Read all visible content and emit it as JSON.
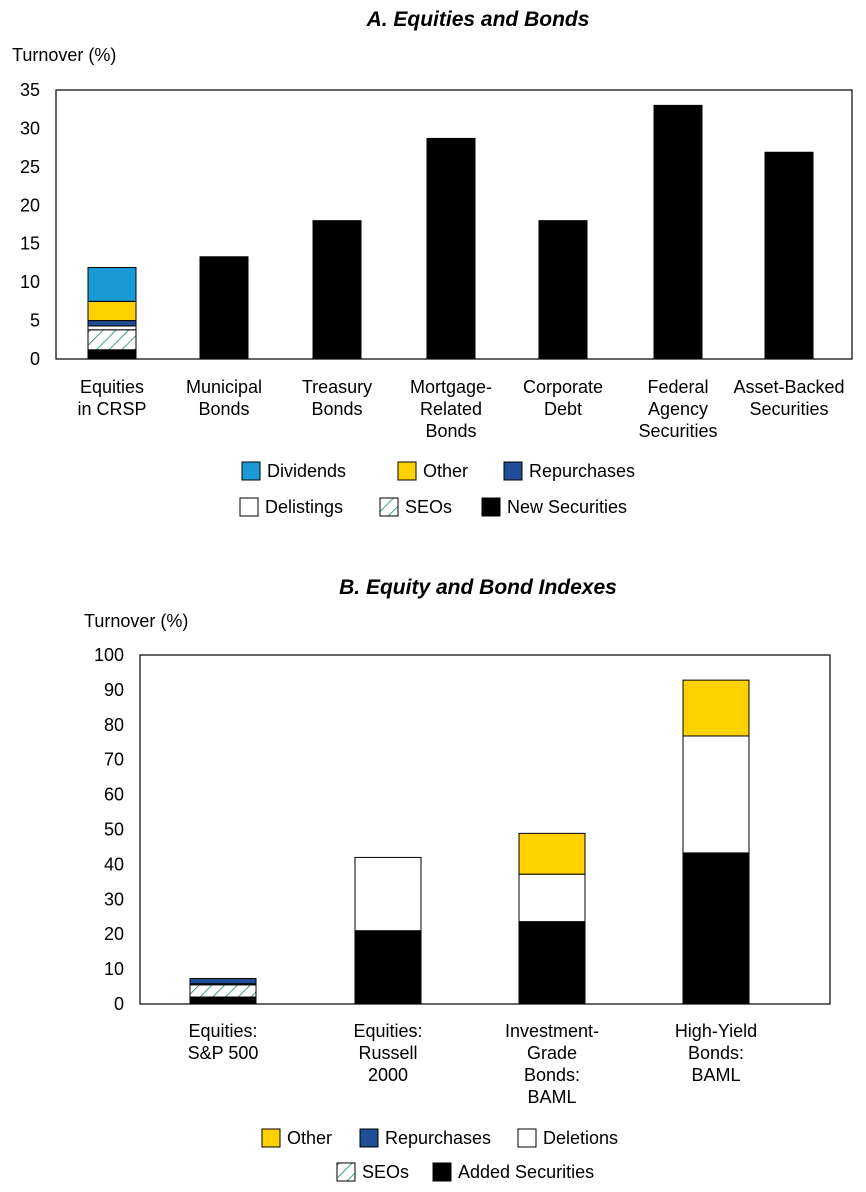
{
  "colors": {
    "dividends": "#1a9bd6",
    "other": "#ffd100",
    "repurchases": "#1f4e96",
    "delistings": "#ffffff",
    "seos_hatch": "#1e8a5a",
    "new_securities": "#000000"
  },
  "chart_data": [
    {
      "type": "bar",
      "stacked": true,
      "title": "A. Equities and Bonds",
      "ylabel": "Turnover (%)",
      "ylim": [
        0,
        35
      ],
      "yticks": [
        0,
        5,
        10,
        15,
        20,
        25,
        30,
        35
      ],
      "grid": false,
      "categories": [
        [
          "Equities",
          "in CRSP"
        ],
        [
          "Municipal",
          "Bonds"
        ],
        [
          "Treasury",
          "Bonds"
        ],
        [
          "Mortgage-",
          "Related",
          "Bonds"
        ],
        [
          "Corporate",
          "Debt"
        ],
        [
          "Federal",
          "Agency",
          "Securities"
        ],
        [
          "Asset-Backed",
          "Securities"
        ]
      ],
      "series": [
        {
          "name": "New Securities",
          "key": "new_securities",
          "values": [
            1.2,
            13.3,
            18.0,
            28.7,
            18.0,
            33.0,
            26.9
          ]
        },
        {
          "name": "SEOs",
          "key": "seos",
          "values": [
            2.6,
            0,
            0,
            0,
            0,
            0,
            0
          ]
        },
        {
          "name": "Delistings",
          "key": "delistings",
          "values": [
            0.5,
            0,
            0,
            0,
            0,
            0,
            0
          ]
        },
        {
          "name": "Repurchases",
          "key": "repurchases",
          "values": [
            0.7,
            0,
            0,
            0,
            0,
            0,
            0
          ]
        },
        {
          "name": "Other",
          "key": "other",
          "values": [
            2.5,
            0,
            0,
            0,
            0,
            0,
            0
          ]
        },
        {
          "name": "Dividends",
          "key": "dividends",
          "values": [
            4.4,
            0,
            0,
            0,
            0,
            0,
            0
          ]
        }
      ],
      "legend_rows": [
        [
          "Dividends",
          "Other",
          "Repurchases"
        ],
        [
          "Delistings",
          "SEOs",
          "New Securities"
        ]
      ],
      "legend_keys": [
        [
          "dividends",
          "other",
          "repurchases"
        ],
        [
          "delistings",
          "seos",
          "new_securities"
        ]
      ],
      "legend_position": "bottom"
    },
    {
      "type": "bar",
      "stacked": true,
      "title": "B. Equity and Bond Indexes",
      "ylabel": "Turnover (%)",
      "ylim": [
        0,
        100
      ],
      "yticks": [
        0,
        10,
        20,
        30,
        40,
        50,
        60,
        70,
        80,
        90,
        100
      ],
      "grid": false,
      "categories": [
        [
          "Equities:",
          "S&P 500"
        ],
        [
          "Equities:",
          "Russell",
          "2000"
        ],
        [
          "Investment-",
          "Grade",
          "Bonds:",
          "BAML"
        ],
        [
          "High-Yield",
          "Bonds:",
          "BAML"
        ]
      ],
      "series": [
        {
          "name": "Added Securities",
          "key": "new_securities",
          "values": [
            2.0,
            21.0,
            23.6,
            43.3
          ]
        },
        {
          "name": "SEOs",
          "key": "seos",
          "values": [
            3.5,
            0,
            0,
            0
          ]
        },
        {
          "name": "Deletions",
          "key": "delistings",
          "values": [
            0.3,
            21.0,
            13.6,
            33.5
          ]
        },
        {
          "name": "Repurchases",
          "key": "repurchases",
          "values": [
            1.5,
            0,
            0,
            0
          ]
        },
        {
          "name": "Other",
          "key": "other",
          "values": [
            0,
            0,
            11.7,
            16.0
          ]
        }
      ],
      "legend_rows": [
        [
          "Other",
          "Repurchases",
          "Deletions"
        ],
        [
          "SEOs",
          "Added Securities"
        ]
      ],
      "legend_keys": [
        [
          "other",
          "repurchases",
          "delistings"
        ],
        [
          "seos",
          "new_securities"
        ]
      ],
      "legend_position": "bottom"
    }
  ]
}
